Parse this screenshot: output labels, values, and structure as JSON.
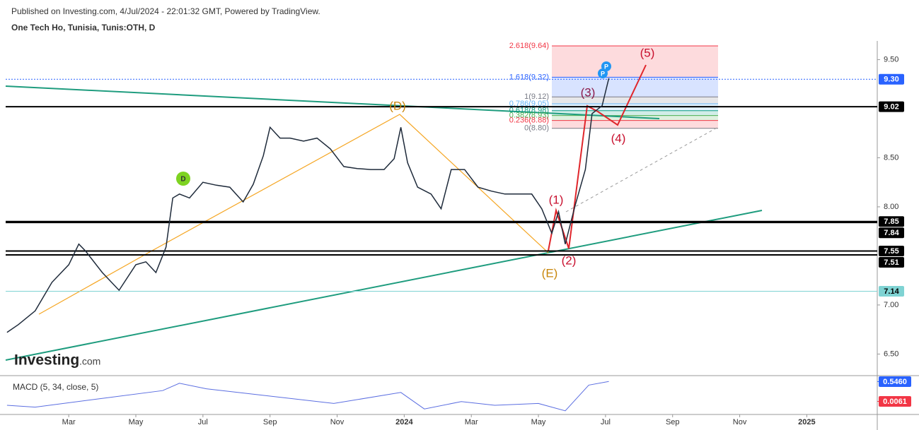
{
  "chart_data": {
    "type": "line",
    "subtitle": "Published on Investing.com, 4/Jul/2024 - 22:01:32 GMT, Powered by TradingView.",
    "title": "One Tech Ho, Tunisia, Tunis:OTH, D",
    "x": [
      0.16,
      0.5,
      1.0,
      1.5,
      2.0,
      2.3,
      2.5,
      3.0,
      3.5,
      4.0,
      4.3,
      4.6,
      4.9,
      5.1,
      5.3,
      5.6,
      6.0,
      6.4,
      6.8,
      7.2,
      7.5,
      7.8,
      8.0,
      8.3,
      8.6,
      9.0,
      9.4,
      9.8,
      10.2,
      10.6,
      11.0,
      11.4,
      11.7,
      11.9,
      12.1,
      12.4,
      12.8,
      13.1,
      13.4,
      13.8,
      14.2,
      14.6,
      15.0,
      15.4,
      15.8,
      16.1,
      16.4,
      16.6,
      16.8,
      17.1,
      17.4,
      17.6,
      17.9,
      18.1
    ],
    "series": [
      {
        "color": "#1e2a3a",
        "values": [
          6.72,
          6.8,
          6.94,
          7.23,
          7.41,
          7.62,
          7.55,
          7.33,
          7.15,
          7.41,
          7.44,
          7.33,
          7.59,
          8.09,
          8.13,
          8.09,
          8.25,
          8.22,
          8.2,
          8.05,
          8.23,
          8.52,
          8.81,
          8.7,
          8.7,
          8.67,
          8.7,
          8.59,
          8.41,
          8.39,
          8.38,
          8.38,
          8.49,
          8.81,
          8.45,
          8.2,
          8.13,
          7.98,
          8.38,
          8.38,
          8.2,
          8.16,
          8.13,
          8.13,
          8.13,
          7.98,
          7.73,
          7.95,
          7.62,
          8.02,
          8.38,
          8.95,
          9.03,
          9.31
        ]
      }
    ],
    "xlim": [
      0.12,
      26.1
    ],
    "xticks": [
      {
        "value": 2,
        "label": "Mar"
      },
      {
        "value": 4,
        "label": "May"
      },
      {
        "value": 6,
        "label": "Jul"
      },
      {
        "value": 8,
        "label": "Sep"
      },
      {
        "value": 10,
        "label": "Nov"
      },
      {
        "value": 12,
        "label": "2024"
      },
      {
        "value": 14,
        "label": "Mar"
      },
      {
        "value": 16,
        "label": "May"
      },
      {
        "value": 18,
        "label": "Jul"
      },
      {
        "value": 20,
        "label": "Sep"
      },
      {
        "value": 22,
        "label": "Nov"
      },
      {
        "value": 24,
        "label": "2025"
      }
    ],
    "ylim": [
      6.28,
      9.69
    ],
    "yticks": [
      {
        "value": 6.5,
        "label": "6.50"
      },
      {
        "value": 7,
        "label": "7.00"
      },
      {
        "value": 8,
        "label": "8.00"
      },
      {
        "value": 8.5,
        "label": "8.50"
      },
      {
        "value": 9.5,
        "label": "9.50"
      }
    ],
    "levels": [
      {
        "value": 9.3,
        "label": "9.30",
        "color": "#2962ff"
      },
      {
        "value": 9.02,
        "label": "9.02",
        "color": "#000000"
      },
      {
        "value": 7.85,
        "label": "7.85",
        "color": "#000000"
      },
      {
        "value": 7.84,
        "label": "7.84",
        "color": "#000000"
      },
      {
        "value": 7.55,
        "label": "7.55",
        "color": "#000000"
      },
      {
        "value": 7.51,
        "label": "7.51",
        "color": "#000000"
      },
      {
        "value": 7.14,
        "label": "7.14",
        "color": "#7fd3d3"
      }
    ],
    "fib": [
      {
        "value": 9.64,
        "label": "2.618(9.64)",
        "color": "#f23645"
      },
      {
        "value": 9.32,
        "label": "1.618(9.32)",
        "color": "#2962ff"
      },
      {
        "value": 9.12,
        "label": "1(9.12)",
        "color": "#787b86"
      },
      {
        "value": 9.05,
        "label": "0.786(9.05)",
        "color": "#64b5f6"
      },
      {
        "value": 8.98,
        "label": "0.618(8.98)",
        "color": "#089981"
      },
      {
        "value": 8.93,
        "label": "0.382(8.93)",
        "color": "#4caf50"
      },
      {
        "value": 8.88,
        "label": "0.236(8.88)",
        "color": "#f23645"
      },
      {
        "value": 8.8,
        "label": "0(8.80)",
        "color": "#787b86"
      }
    ],
    "annotations": [
      {
        "text": "(D)",
        "color": "#c8860a"
      },
      {
        "text": "(E)",
        "color": "#c8860a"
      },
      {
        "text": "(1)",
        "color": "#c8102e"
      },
      {
        "text": "(2)",
        "color": "#c8102e"
      },
      {
        "text": "(3)",
        "color": "#8b1a4a"
      },
      {
        "text": "(4)",
        "color": "#c8102e"
      },
      {
        "text": "(5)",
        "color": "#c8102e"
      }
    ],
    "watermark": {
      "brand": "Investing",
      "suffix": ".com"
    },
    "macd": {
      "title": "MACD (5, 34, close, 5)",
      "x": [
        0.16,
        1.0,
        3.1,
        4.8,
        5.3,
        6.1,
        8.0,
        9.9,
        11.9,
        12.6,
        13.7,
        14.7,
        16.0,
        16.8,
        17.5,
        18.1
      ],
      "values": [
        -0.1,
        -0.15,
        0.1,
        0.3,
        0.5,
        0.35,
        0.15,
        -0.05,
        0.25,
        -0.2,
        0.0,
        -0.1,
        -0.05,
        -0.25,
        0.45,
        0.55
      ],
      "color": "#5b6ee1",
      "ylim": [
        -0.35,
        0.67
      ],
      "levels": [
        {
          "value": 0.546,
          "label": "0.5460",
          "color": "#2962ff"
        },
        {
          "value": 0.0061,
          "label": "0.0061",
          "color": "#f23645"
        }
      ]
    }
  }
}
